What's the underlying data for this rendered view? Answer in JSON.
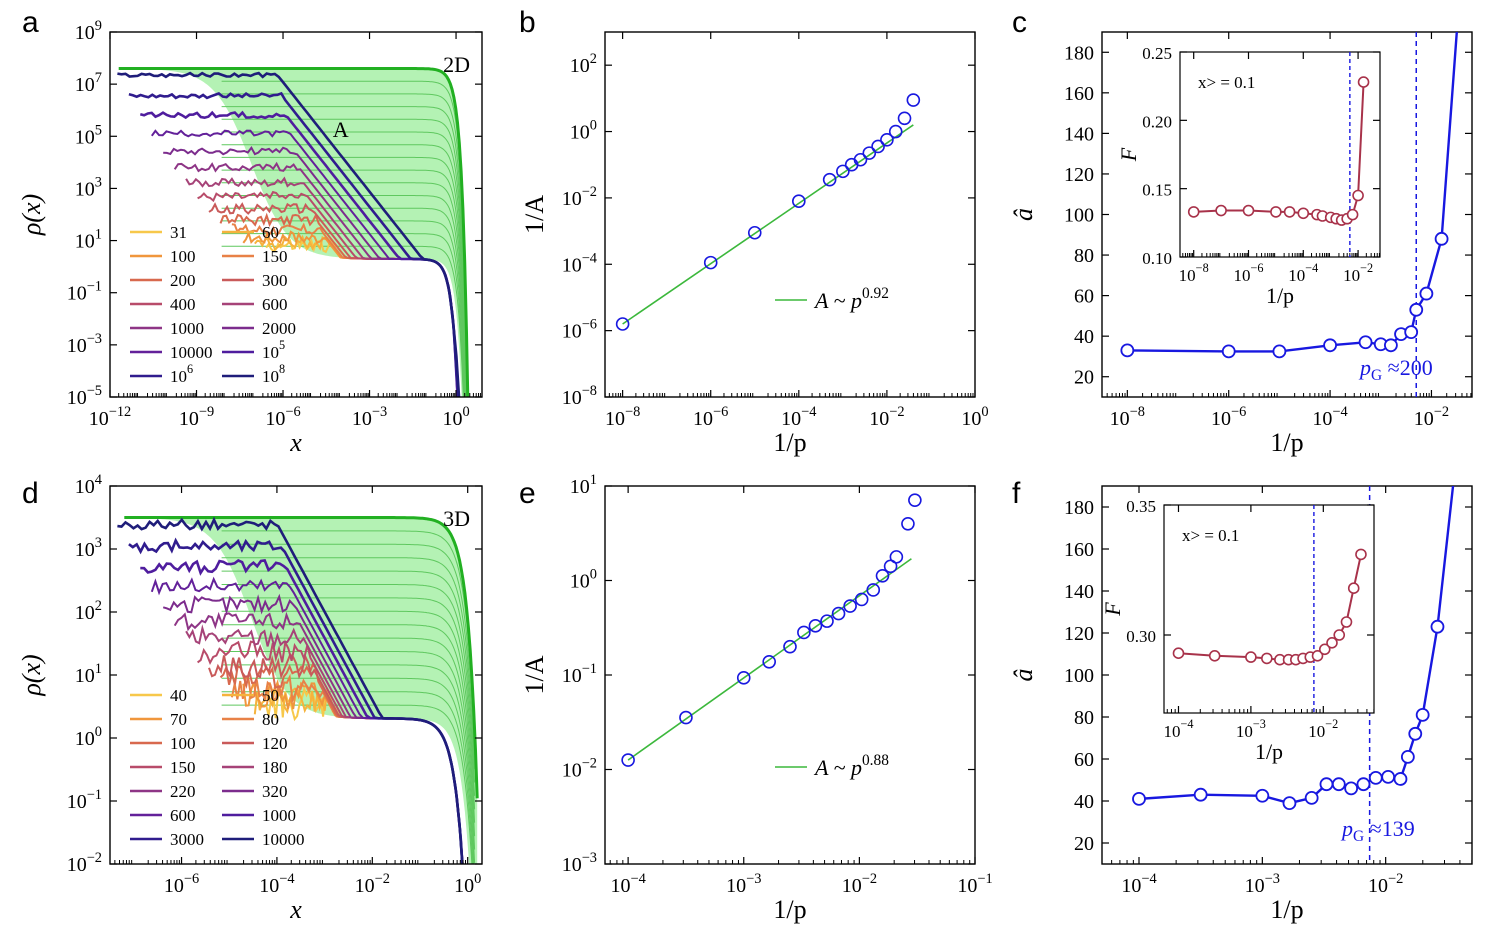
{
  "chart_data": [
    {
      "panel": "a",
      "type": "line",
      "dimension_label": "2D",
      "area_label": "A",
      "xlabel": "x",
      "ylabel": "ρ(x)",
      "xscale": "log",
      "yscale": "log",
      "xlim_exp": [
        -12,
        0.9
      ],
      "ylim_exp": [
        -5,
        9
      ],
      "x_ticks": [
        "-12",
        "-9",
        "-6",
        "-3",
        "0"
      ],
      "y_ticks": [
        "-5",
        "-3",
        "-1",
        "1",
        "3",
        "5",
        "7",
        "9"
      ],
      "legend": [
        "31",
        "60",
        "100",
        "150",
        "200",
        "300",
        "400",
        "600",
        "1000",
        "2000",
        "10000",
        "10",
        "10",
        "10"
      ],
      "legend_exp": [
        "",
        "",
        "",
        "",
        "",
        "",
        "",
        "",
        "",
        "",
        "",
        "5",
        "6",
        "8"
      ],
      "legend_colors": [
        "#f7c84a",
        "#f5b33d",
        "#f0963c",
        "#e88147",
        "#d8694e",
        "#c95a5a",
        "#b84c6a",
        "#a64378",
        "#8e3586",
        "#7c2c8d",
        "#63219a",
        "#4f1d9e",
        "#301c8e",
        "#1f1d7a"
      ],
      "legend_p": [
        31,
        60,
        100,
        150,
        200,
        300,
        400,
        600,
        1000,
        2000,
        10000,
        100000,
        1000000,
        100000000
      ],
      "envelope_plateau_exp": 7.6
    },
    {
      "panel": "b",
      "type": "scatter",
      "xlabel": "1/p",
      "ylabel": "1/A",
      "xscale": "log",
      "yscale": "log",
      "xlim_exp": [
        -8.4,
        0
      ],
      "ylim_exp": [
        -8,
        3
      ],
      "x_ticks": [
        "-8",
        "-6",
        "-4",
        "-2",
        "0"
      ],
      "y_ticks": [
        "-8",
        "-6",
        "-4",
        "-2",
        "0",
        "2"
      ],
      "points_log10": [
        [
          -8,
          -5.8
        ],
        [
          -6,
          -3.95
        ],
        [
          -5,
          -3.05
        ],
        [
          -4,
          -2.1
        ],
        [
          -3.3,
          -1.45
        ],
        [
          -3,
          -1.2
        ],
        [
          -2.8,
          -1.0
        ],
        [
          -2.6,
          -0.85
        ],
        [
          -2.4,
          -0.65
        ],
        [
          -2.2,
          -0.45
        ],
        [
          -2.0,
          -0.25
        ],
        [
          -1.8,
          0.0
        ],
        [
          -1.6,
          0.4
        ],
        [
          -1.4,
          0.95
        ]
      ],
      "fit_label": "A ~ p",
      "fit_exponent": "0.92",
      "fit_line_log10": [
        [
          -8,
          -5.8
        ],
        [
          -1.4,
          0.2
        ]
      ]
    },
    {
      "panel": "c",
      "type": "line",
      "xlabel": "1/p",
      "ylabel": "â",
      "xscale": "log",
      "xlim_exp": [
        -8.5,
        -1.2
      ],
      "ylim": [
        10,
        190
      ],
      "x_ticks": [
        "-8",
        "-6",
        "-4",
        "-2"
      ],
      "y_ticks": [
        20,
        40,
        60,
        80,
        100,
        120,
        140,
        160,
        180
      ],
      "points": [
        [
          -8,
          33
        ],
        [
          -6,
          32.5
        ],
        [
          -5,
          32.5
        ],
        [
          -4,
          35.5
        ],
        [
          -3.3,
          37
        ],
        [
          -3,
          36
        ],
        [
          -2.8,
          35.5
        ],
        [
          -2.6,
          41
        ],
        [
          -2.4,
          42
        ],
        [
          -2.3,
          53
        ],
        [
          -2.1,
          61
        ],
        [
          -1.8,
          88
        ],
        [
          -1.5,
          190
        ]
      ],
      "vline_exp": -2.3,
      "vline_label": "≈200",
      "inset": {
        "ylabel": "F",
        "xlabel": "1/p",
        "note": "x> = 0.1",
        "xlim_exp": [
          -8.5,
          -1.2
        ],
        "ylim": [
          0.1,
          0.25
        ],
        "x_ticks": [
          "-8",
          "-6",
          "-4",
          "-2"
        ],
        "y_ticks": [
          "0.10",
          "0.15",
          "0.20",
          "0.25"
        ],
        "points": [
          [
            -8,
            0.133
          ],
          [
            -7,
            0.134
          ],
          [
            -6,
            0.134
          ],
          [
            -5,
            0.133
          ],
          [
            -4.5,
            0.133
          ],
          [
            -4,
            0.132
          ],
          [
            -3.5,
            0.131
          ],
          [
            -3.3,
            0.13
          ],
          [
            -3,
            0.129
          ],
          [
            -2.8,
            0.128
          ],
          [
            -2.6,
            0.127
          ],
          [
            -2.4,
            0.128
          ],
          [
            -2.2,
            0.131
          ],
          [
            -2,
            0.145
          ],
          [
            -1.8,
            0.228
          ]
        ],
        "vline_exp": -2.3
      }
    },
    {
      "panel": "d",
      "type": "line",
      "dimension_label": "3D",
      "xlabel": "x",
      "ylabel": "ρ(x)",
      "xscale": "log",
      "yscale": "log",
      "xlim_exp": [
        -7.5,
        0.3
      ],
      "ylim_exp": [
        -2,
        4
      ],
      "x_ticks": [
        "-6",
        "-4",
        "-2",
        "0"
      ],
      "y_ticks": [
        "-2",
        "-1",
        "0",
        "1",
        "2",
        "3",
        "4"
      ],
      "legend": [
        "40",
        "50",
        "70",
        "80",
        "100",
        "120",
        "150",
        "180",
        "220",
        "320",
        "600",
        "1000",
        "3000",
        "10000"
      ],
      "legend_colors": [
        "#f7c84a",
        "#f5b33d",
        "#f0963c",
        "#e88147",
        "#d8694e",
        "#c95a5a",
        "#b84c6a",
        "#a64378",
        "#8e3586",
        "#7c2c8d",
        "#63219a",
        "#4f1d9e",
        "#301c8e",
        "#1f1d7a"
      ],
      "legend_p": [
        40,
        50,
        70,
        80,
        100,
        120,
        150,
        180,
        220,
        320,
        600,
        1000,
        3000,
        10000
      ],
      "envelope_plateau_exp": 3.5
    },
    {
      "panel": "e",
      "type": "scatter",
      "xlabel": "1/p",
      "ylabel": "1/A",
      "xscale": "log",
      "yscale": "log",
      "xlim_exp": [
        -4.2,
        -1
      ],
      "ylim_exp": [
        -3,
        1
      ],
      "x_ticks": [
        "-4",
        "-3",
        "-2",
        "-1"
      ],
      "y_ticks": [
        "-3",
        "-2",
        "-1",
        "0",
        "1"
      ],
      "points_log10": [
        [
          -4,
          -1.9
        ],
        [
          -3.5,
          -1.45
        ],
        [
          -3,
          -1.03
        ],
        [
          -2.78,
          -0.86
        ],
        [
          -2.6,
          -0.7
        ],
        [
          -2.48,
          -0.55
        ],
        [
          -2.38,
          -0.48
        ],
        [
          -2.28,
          -0.43
        ],
        [
          -2.18,
          -0.35
        ],
        [
          -2.08,
          -0.27
        ],
        [
          -1.98,
          -0.2
        ],
        [
          -1.88,
          -0.1
        ],
        [
          -1.8,
          0.05
        ],
        [
          -1.73,
          0.15
        ],
        [
          -1.68,
          0.25
        ],
        [
          -1.58,
          0.6
        ],
        [
          -1.52,
          0.85
        ]
      ],
      "fit_label": "A ~ p",
      "fit_exponent": "0.88",
      "fit_line_log10": [
        [
          -4,
          -1.9
        ],
        [
          -1.55,
          0.23
        ]
      ]
    },
    {
      "panel": "f",
      "type": "line",
      "xlabel": "1/p",
      "ylabel": "â",
      "xscale": "log",
      "xlim_exp": [
        -4.3,
        -1.3
      ],
      "ylim": [
        10,
        190
      ],
      "x_ticks": [
        "-4",
        "-3",
        "-2"
      ],
      "y_ticks": [
        20,
        40,
        60,
        80,
        100,
        120,
        140,
        160,
        180
      ],
      "points": [
        [
          -4,
          41
        ],
        [
          -3.5,
          43
        ],
        [
          -3,
          42.5
        ],
        [
          -2.78,
          39
        ],
        [
          -2.6,
          41.5
        ],
        [
          -2.48,
          48
        ],
        [
          -2.38,
          48
        ],
        [
          -2.28,
          46
        ],
        [
          -2.18,
          48
        ],
        [
          -2.08,
          51
        ],
        [
          -1.98,
          51.5
        ],
        [
          -1.88,
          50.5
        ],
        [
          -1.82,
          61
        ],
        [
          -1.76,
          72
        ],
        [
          -1.7,
          81
        ],
        [
          -1.58,
          123
        ],
        [
          -1.45,
          192
        ]
      ],
      "vline_exp": -2.13,
      "vline_label": "≈139",
      "inset": {
        "ylabel": "F",
        "xlabel": "1/p",
        "note": "x> = 0.1",
        "xlim_exp": [
          -4.2,
          -1.3
        ],
        "ylim": [
          0.27,
          0.35
        ],
        "x_ticks": [
          "-4",
          "-3",
          "-2"
        ],
        "y_ticks": [
          "0.30",
          "0.35"
        ],
        "points": [
          [
            -4,
            0.293
          ],
          [
            -3.5,
            0.292
          ],
          [
            -3,
            0.2915
          ],
          [
            -2.78,
            0.291
          ],
          [
            -2.6,
            0.2905
          ],
          [
            -2.48,
            0.2905
          ],
          [
            -2.38,
            0.2905
          ],
          [
            -2.28,
            0.291
          ],
          [
            -2.18,
            0.2915
          ],
          [
            -2.08,
            0.292
          ],
          [
            -1.98,
            0.2945
          ],
          [
            -1.88,
            0.297
          ],
          [
            -1.78,
            0.3
          ],
          [
            -1.68,
            0.305
          ],
          [
            -1.58,
            0.318
          ],
          [
            -1.48,
            0.331
          ]
        ],
        "vline_exp": -2.13
      }
    }
  ],
  "panel_letters": [
    "a",
    "b",
    "c",
    "d",
    "e",
    "f"
  ],
  "pg_prefix": "p",
  "pg_sub": "G",
  "tick_base": "10"
}
